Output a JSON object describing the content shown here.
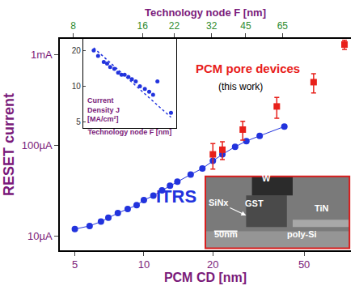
{
  "chart_data": [
    {
      "type": "scatter",
      "x_label": "PCM CD [nm]",
      "y_label": "RESET current",
      "x2_label": "Technology node F [nm]",
      "log": true,
      "grid": false,
      "xlim": [
        4.3,
        80
      ],
      "xticks": [
        5,
        10,
        20,
        50
      ],
      "ylim": [
        7,
        1500
      ],
      "yticks": [
        {
          "value": 10,
          "label": "10µA"
        },
        {
          "value": 100,
          "label": "100µA"
        },
        {
          "value": 1000,
          "label": "1mA"
        }
      ],
      "x2lim": [
        7,
        129
      ],
      "x2ticks": [
        8,
        16,
        22,
        32,
        45,
        65
      ],
      "series": [
        {
          "name": "ITRS",
          "color": "#2233dd",
          "marker": "circle",
          "line_style": "solid",
          "x": [
            5,
            5.8,
            6.5,
            7,
            7.7,
            8.5,
            9.3,
            10,
            11,
            12,
            13,
            14,
            16,
            18,
            20,
            22,
            25,
            28,
            32,
            41
          ],
          "values": [
            12,
            13,
            14.5,
            16,
            18,
            20,
            22,
            25,
            28,
            32,
            36,
            40,
            48,
            56,
            68,
            80,
            97,
            112,
            128,
            162
          ]
        },
        {
          "name": "PCM pore devices",
          "color": "#e8201a",
          "marker": "square",
          "line_style": "none",
          "x": [
            20,
            22,
            27,
            38,
            55,
            75
          ],
          "values": [
            80,
            90,
            150,
            270,
            500,
            1300
          ],
          "errors": [
            25,
            20,
            35,
            70,
            120,
            150
          ]
        }
      ],
      "annotations": [
        "(this work)"
      ],
      "image_labels": [
        "W",
        "GST",
        "SiNx",
        "TiN",
        "poly-Si",
        "50nm"
      ]
    },
    {
      "type": "scatter",
      "x_label": "Technology node F [nm]",
      "y_label": "Current Density J [MA/cm²]",
      "log": true,
      "grid": false,
      "tick_labels": "y",
      "xlim": [
        6,
        75
      ],
      "xticks": [],
      "ylim": [
        4.5,
        25
      ],
      "yticks": [
        5,
        10,
        20
      ],
      "series": [
        {
          "color": "#2233dd",
          "marker": "circle",
          "line_style": "none",
          "x": [
            8,
            9,
            10.5,
            11.5,
            12.5,
            14,
            15.5,
            17,
            18.5,
            20.5,
            22.5,
            25,
            28,
            32,
            36,
            40,
            45,
            65
          ],
          "values": [
            20,
            18,
            16,
            15.5,
            14.5,
            14,
            13,
            12.5,
            12.5,
            12,
            11.5,
            11,
            10,
            9.5,
            9,
            8.5,
            11,
            6
          ]
        },
        {
          "color": "#2233dd",
          "marker": "none",
          "line_style": "dotted",
          "x": [
            8,
            65
          ],
          "values": [
            21,
            5.5
          ]
        }
      ]
    }
  ]
}
